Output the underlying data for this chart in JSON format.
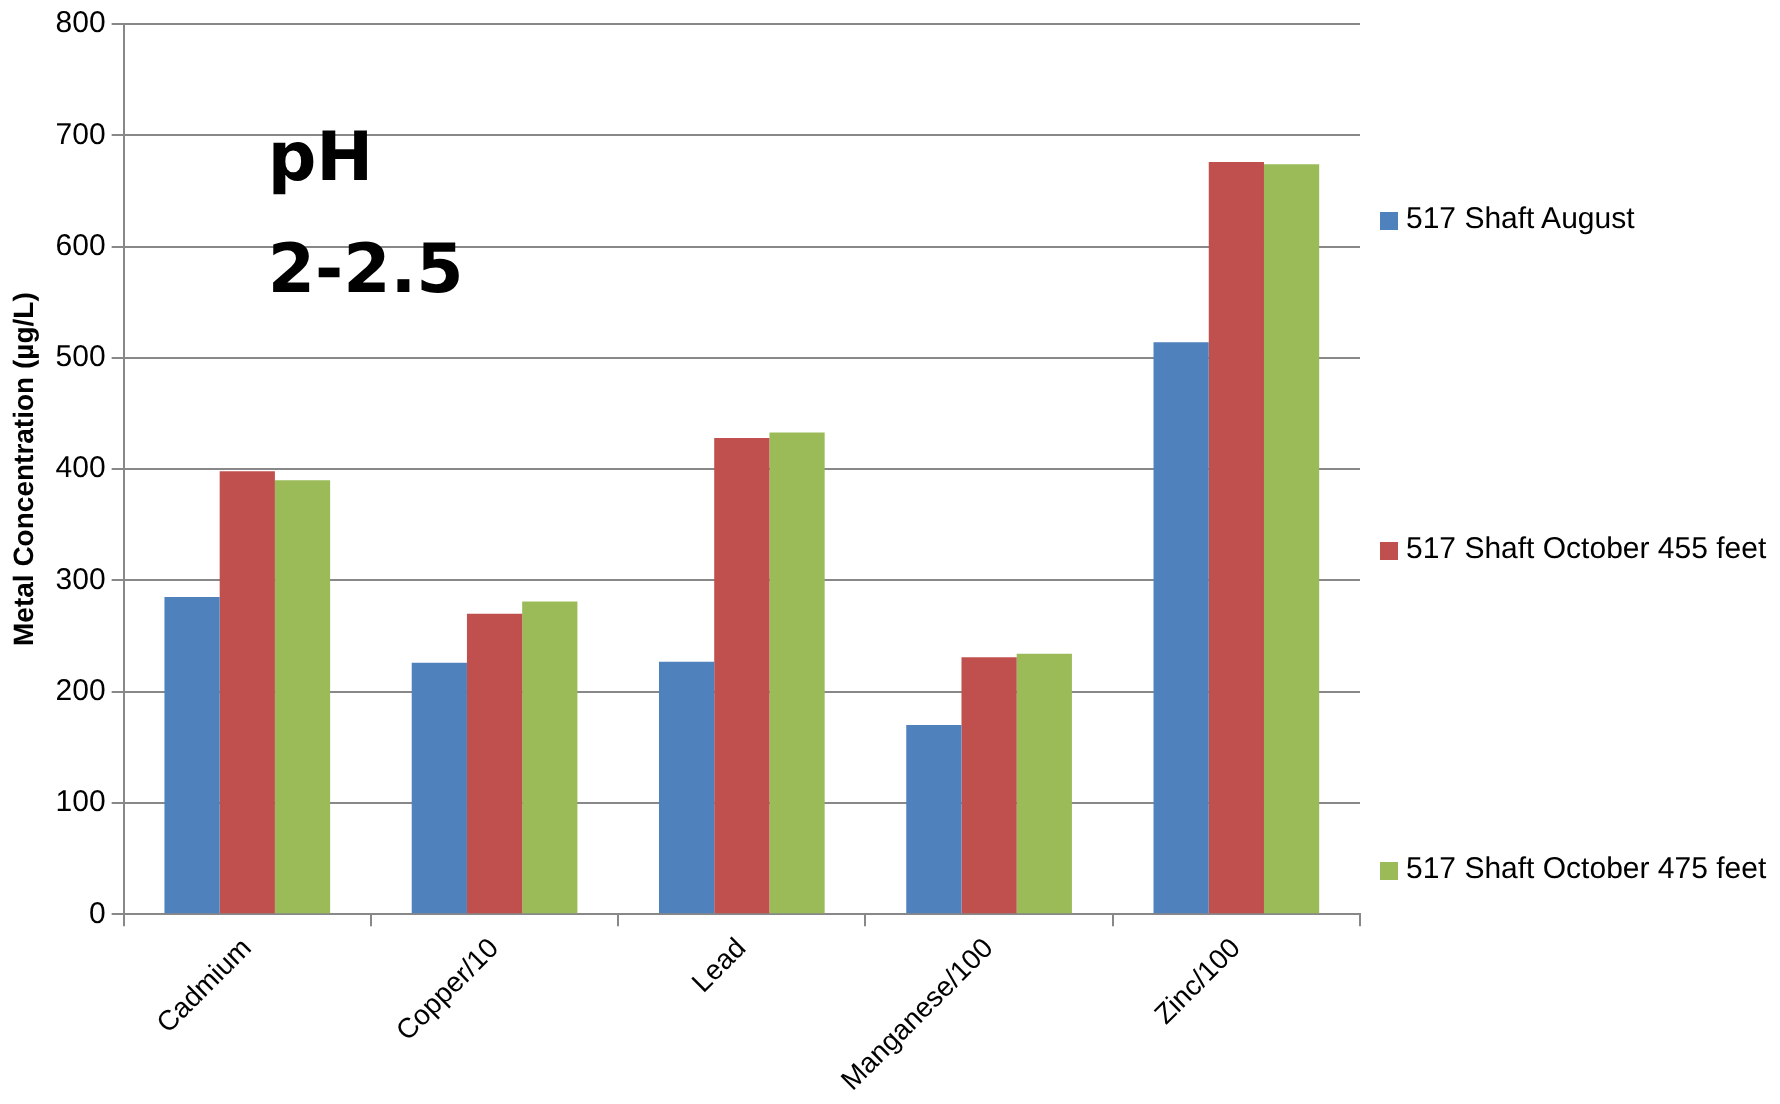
{
  "chart_data": {
    "type": "bar",
    "ylabel": "Metal Concentration (µg/L)",
    "annotations": [
      "pH 2-2.5"
    ],
    "categories": [
      "Cadmium",
      "Copper/10",
      "Lead",
      "Manganese/100",
      "Zinc/100"
    ],
    "series": [
      {
        "name": "517 Shaft August",
        "color": "#4f81bd",
        "values": [
          285,
          226,
          227,
          170,
          514
        ]
      },
      {
        "name": "517 Shaft October 455 feet",
        "color": "#c0504d",
        "values": [
          398,
          270,
          428,
          231,
          676
        ]
      },
      {
        "name": "517 Shaft October 475 feet",
        "color": "#9bbb59",
        "values": [
          390,
          281,
          433,
          234,
          674
        ]
      }
    ],
    "ylim": [
      0,
      800
    ],
    "yticks": [
      0,
      100,
      200,
      300,
      400,
      500,
      600,
      700,
      800
    ],
    "grid": "y",
    "legend": "right"
  }
}
